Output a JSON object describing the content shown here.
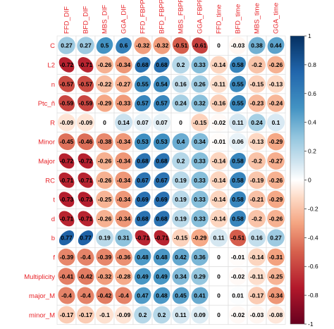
{
  "chart_data": {
    "type": "heatmap",
    "columns": [
      "FFD_DIF",
      "BFD_DIF",
      "MBS_DIF",
      "GGA_DIF",
      "FFD_FBPP",
      "BFD_FBPP",
      "MBS_FBPP",
      "GGA_FBPP",
      "FFD_time",
      "BFD_time",
      "MBS_time",
      "GGA_time"
    ],
    "rows": [
      "C",
      "L2",
      "n",
      "Ptc_ñ",
      "R",
      "Minor",
      "Major",
      "RC",
      "t",
      "d",
      "b",
      "f",
      "Multiplicity",
      "major_M",
      "minor_M"
    ],
    "values": [
      [
        0.27,
        0.27,
        0.5,
        0.6,
        -0.32,
        -0.32,
        -0.51,
        -0.61,
        0,
        -0.03,
        0.38,
        0.44
      ],
      [
        -0.72,
        -0.71,
        -0.26,
        -0.34,
        0.68,
        0.68,
        0.2,
        0.33,
        -0.14,
        0.58,
        -0.2,
        -0.26
      ],
      [
        -0.57,
        -0.57,
        -0.22,
        -0.27,
        0.55,
        0.54,
        0.16,
        0.26,
        -0.11,
        0.55,
        -0.15,
        -0.13
      ],
      [
        -0.59,
        -0.59,
        -0.29,
        -0.33,
        0.57,
        0.57,
        0.24,
        0.32,
        -0.16,
        0.55,
        -0.23,
        -0.24
      ],
      [
        -0.09,
        -0.09,
        0,
        0.14,
        0.07,
        0.07,
        0,
        -0.15,
        -0.02,
        0.11,
        0.24,
        0.1
      ],
      [
        -0.45,
        -0.46,
        -0.38,
        -0.34,
        0.53,
        0.53,
        0.4,
        0.34,
        -0.01,
        0.06,
        -0.13,
        -0.29
      ],
      [
        -0.72,
        -0.72,
        -0.26,
        -0.34,
        0.68,
        0.68,
        0.2,
        0.33,
        -0.14,
        0.58,
        -0.2,
        -0.27
      ],
      [
        -0.71,
        -0.71,
        -0.26,
        -0.34,
        0.67,
        0.67,
        0.19,
        0.33,
        -0.14,
        0.58,
        -0.19,
        -0.26
      ],
      [
        -0.73,
        -0.73,
        -0.25,
        -0.34,
        0.69,
        0.69,
        0.19,
        0.33,
        -0.14,
        0.58,
        -0.21,
        -0.29
      ],
      [
        -0.71,
        -0.71,
        -0.26,
        -0.34,
        0.68,
        0.68,
        0.19,
        0.33,
        -0.14,
        0.58,
        -0.2,
        -0.26
      ],
      [
        0.77,
        0.77,
        0.19,
        0.31,
        -0.71,
        -0.71,
        -0.15,
        -0.29,
        0.11,
        -0.51,
        0.16,
        0.27
      ],
      [
        -0.39,
        -0.4,
        -0.39,
        -0.36,
        0.48,
        0.48,
        0.42,
        0.36,
        0,
        -0.01,
        -0.14,
        -0.31
      ],
      [
        -0.41,
        -0.42,
        -0.32,
        -0.28,
        0.49,
        0.49,
        0.34,
        0.29,
        0,
        -0.02,
        -0.11,
        -0.25
      ],
      [
        -0.4,
        -0.4,
        -0.42,
        -0.4,
        0.47,
        0.48,
        0.45,
        0.41,
        0,
        0.01,
        -0.17,
        -0.34
      ],
      [
        -0.17,
        -0.17,
        -0.1,
        -0.09,
        0.2,
        0.2,
        0.11,
        0.09,
        0,
        -0.02,
        -0.03,
        -0.08
      ]
    ],
    "colorbar_ticks": [
      "1",
      "0.8",
      "0.6",
      "0.4",
      "0.2",
      "0",
      "-0.2",
      "-0.4",
      "-0.6",
      "-0.8",
      "-1"
    ],
    "range": [
      -1,
      1
    ],
    "colors": {
      "negative": "#67001f",
      "neutral": "#ffffff",
      "positive": "#053061",
      "label": "#e8262b"
    },
    "grid": true
  }
}
